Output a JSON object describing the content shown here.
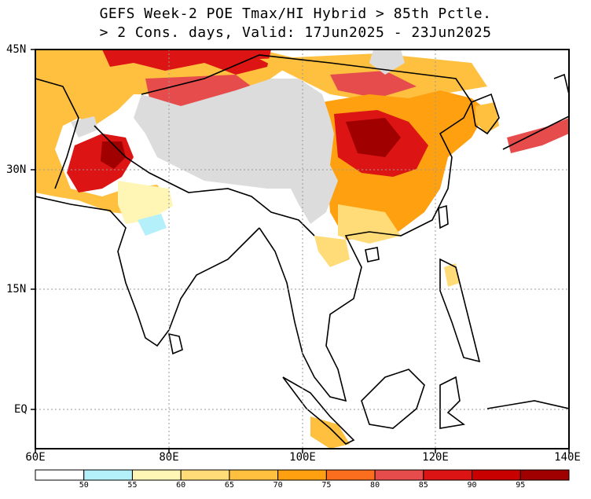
{
  "title": {
    "line1": "GEFS Week-2 POE Tmax/HI Hybrid > 85th Pctle.",
    "line2": "> 2 Cons. days, Valid: 17Jun2025 - 23Jun2025"
  },
  "map": {
    "lat_labels": [
      "45N",
      "30N",
      "15N",
      "EQ"
    ],
    "lon_labels": [
      "60E",
      "80E",
      "100E",
      "120E",
      "140E"
    ],
    "lat_values": [
      45,
      30,
      15,
      0
    ],
    "lon_values": [
      60,
      80,
      100,
      120,
      140
    ],
    "extent": {
      "lon_min": 60,
      "lon_max": 140,
      "lat_min": -5,
      "lat_max": 45
    },
    "masked_region": "Tibetan Plateau (grey)",
    "colors": {
      "masked": "#dcdcdc",
      "border": "#000000",
      "grid": "#9a9a9a"
    }
  },
  "colorbar": {
    "labels": [
      "50",
      "55",
      "60",
      "65",
      "70",
      "75",
      "80",
      "85",
      "90",
      "95"
    ],
    "colors": [
      "#ffffff",
      "#b4f0fa",
      "#fff5b4",
      "#ffdc78",
      "#ffc040",
      "#ffa010",
      "#fa6e1e",
      "#e64c4c",
      "#dc1414",
      "#c80000",
      "#a00000"
    ]
  }
}
